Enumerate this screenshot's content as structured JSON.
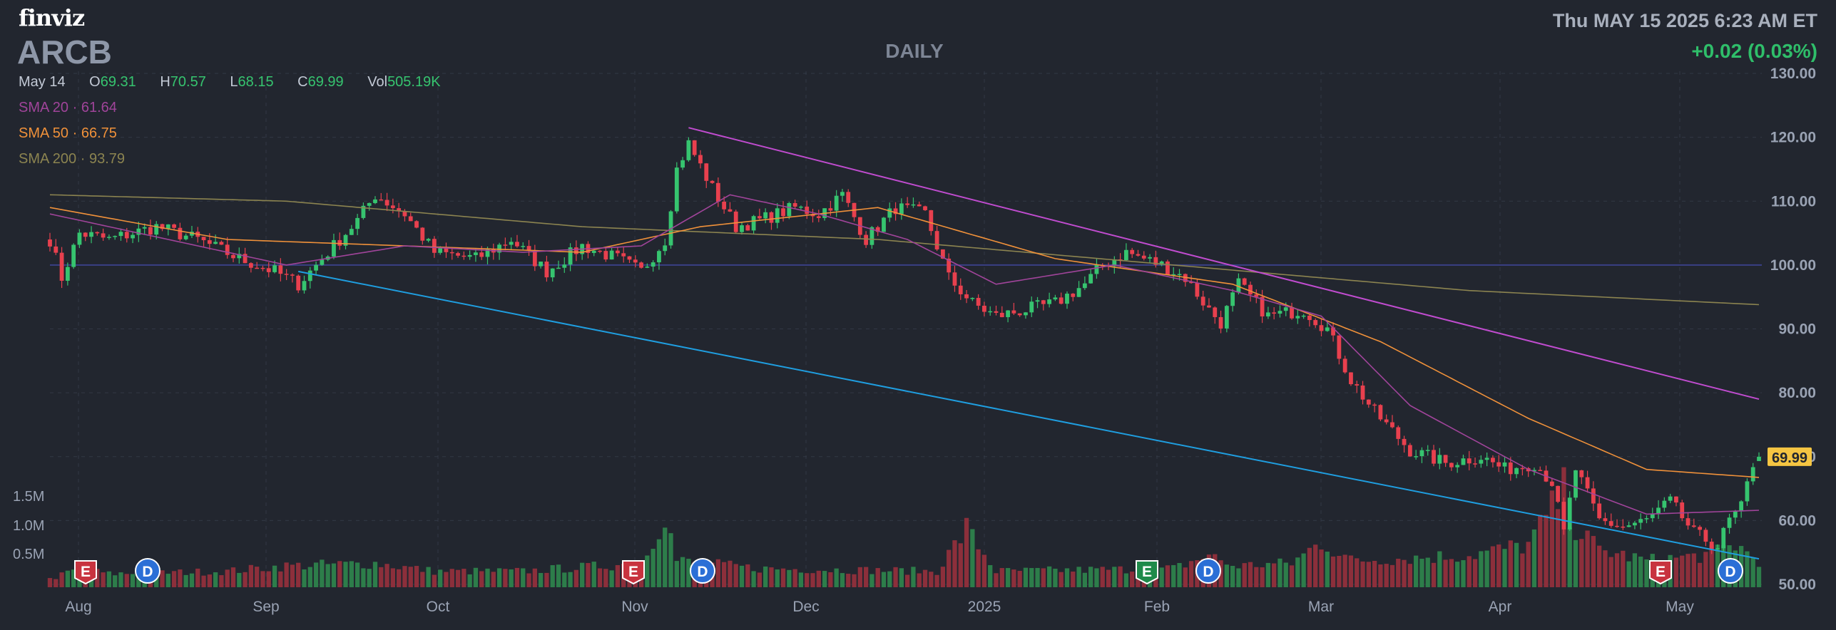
{
  "header": {
    "logo": "finviz",
    "ticker": "ARCB",
    "timeframe": "DAILY",
    "datetime": "Thu MAY 15 2025 6:23 AM ET",
    "change": "+0.02 (0.03%)"
  },
  "ohlc": {
    "date": "May 14",
    "open_label": "O",
    "open": "69.31",
    "high_label": "H",
    "high": "70.57",
    "low_label": "L",
    "low": "68.15",
    "close_label": "C",
    "close": "69.99",
    "vol_label": "Vol",
    "vol": "505.19K"
  },
  "indicators": [
    {
      "label": "SMA 20",
      "value": "61.64",
      "color": "#a0449a"
    },
    {
      "label": "SMA 50",
      "value": "66.75",
      "color": "#f0913a"
    },
    {
      "label": "SMA 200",
      "value": "93.79",
      "color": "#8c8450"
    }
  ],
  "colors": {
    "up": "#36c46f",
    "down": "#e8404e",
    "vol_up": "#2d7d4a",
    "vol_down": "#8c2f3b",
    "sma20": "#a0449a",
    "sma50": "#f0913a",
    "sma200": "#8c8450",
    "trend_upper": "#c04ccf",
    "trend_lower": "#1f9ee0",
    "price_line": "#3a3f86",
    "last_price_bg": "#f5c542"
  },
  "chart_data": {
    "type": "candlestick",
    "y_axis": {
      "ticks": [
        "130.00",
        "120.00",
        "110.00",
        "100.00",
        "90.00",
        "80.00",
        "70.00",
        "60.00",
        "50.00"
      ],
      "range": [
        50,
        130
      ],
      "side": "right"
    },
    "volume_axis": {
      "ticks": [
        "1.5M",
        "1.0M",
        "0.5M"
      ]
    },
    "x_axis": {
      "labels": [
        "Aug",
        "Sep",
        "Oct",
        "Nov",
        "Dec",
        "2025",
        "Feb",
        "Mar",
        "Apr",
        "May"
      ]
    },
    "last_price": "69.99",
    "horizontal_line": 100,
    "events": [
      {
        "type": "E",
        "month": "Aug"
      },
      {
        "type": "D",
        "month": "Aug"
      },
      {
        "type": "E",
        "month": "Nov"
      },
      {
        "type": "D",
        "month": "Nov"
      },
      {
        "type": "E",
        "month": "Feb",
        "positive": true
      },
      {
        "type": "D",
        "month": "Feb"
      },
      {
        "type": "E",
        "month": "May"
      },
      {
        "type": "D",
        "month": "May"
      }
    ],
    "price_anchors": [
      [
        0,
        104
      ],
      [
        2,
        98
      ],
      [
        5,
        105
      ],
      [
        10,
        104
      ],
      [
        18,
        106
      ],
      [
        25,
        104
      ],
      [
        32,
        101
      ],
      [
        38,
        99
      ],
      [
        42,
        97
      ],
      [
        48,
        103
      ],
      [
        52,
        107
      ],
      [
        55,
        111
      ],
      [
        60,
        108
      ],
      [
        65,
        102
      ],
      [
        72,
        101
      ],
      [
        78,
        104
      ],
      [
        84,
        99
      ],
      [
        90,
        103
      ],
      [
        96,
        101
      ],
      [
        100,
        99
      ],
      [
        104,
        104
      ],
      [
        106,
        115
      ],
      [
        108,
        119
      ],
      [
        112,
        112
      ],
      [
        116,
        106
      ],
      [
        120,
        107
      ],
      [
        126,
        109
      ],
      [
        130,
        108
      ],
      [
        134,
        111
      ],
      [
        138,
        104
      ],
      [
        143,
        109
      ],
      [
        148,
        108
      ],
      [
        152,
        98
      ],
      [
        156,
        94
      ],
      [
        160,
        92
      ],
      [
        165,
        93
      ],
      [
        170,
        94
      ],
      [
        175,
        97
      ],
      [
        178,
        100
      ],
      [
        182,
        102
      ],
      [
        188,
        100
      ],
      [
        192,
        98
      ],
      [
        196,
        93
      ],
      [
        198,
        91
      ],
      [
        201,
        97
      ],
      [
        206,
        92
      ],
      [
        212,
        93
      ],
      [
        216,
        90
      ],
      [
        220,
        82
      ],
      [
        224,
        77
      ],
      [
        230,
        71
      ],
      [
        236,
        69
      ],
      [
        242,
        70
      ],
      [
        246,
        68
      ],
      [
        251,
        69
      ],
      [
        254,
        66
      ],
      [
        256,
        58
      ],
      [
        258,
        68
      ],
      [
        262,
        60
      ],
      [
        266,
        59
      ],
      [
        270,
        60
      ],
      [
        274,
        63
      ],
      [
        278,
        58
      ],
      [
        282,
        56
      ],
      [
        284,
        60
      ],
      [
        286,
        62
      ],
      [
        288,
        69
      ],
      [
        289,
        70
      ]
    ],
    "sma20_anchors": [
      [
        0,
        108
      ],
      [
        20,
        104
      ],
      [
        40,
        100
      ],
      [
        60,
        103
      ],
      [
        80,
        102
      ],
      [
        100,
        103
      ],
      [
        115,
        111
      ],
      [
        130,
        108
      ],
      [
        145,
        104
      ],
      [
        160,
        97
      ],
      [
        180,
        100
      ],
      [
        200,
        96
      ],
      [
        215,
        92
      ],
      [
        230,
        78
      ],
      [
        250,
        68
      ],
      [
        270,
        61
      ],
      [
        289,
        61.6
      ]
    ],
    "sma50_anchors": [
      [
        0,
        109
      ],
      [
        30,
        104
      ],
      [
        60,
        103
      ],
      [
        90,
        102
      ],
      [
        110,
        106
      ],
      [
        140,
        109
      ],
      [
        170,
        101
      ],
      [
        200,
        97
      ],
      [
        225,
        88
      ],
      [
        250,
        76
      ],
      [
        270,
        68
      ],
      [
        289,
        66.75
      ]
    ],
    "sma200_anchors": [
      [
        0,
        111
      ],
      [
        40,
        110
      ],
      [
        90,
        106
      ],
      [
        140,
        104
      ],
      [
        190,
        100
      ],
      [
        240,
        96
      ],
      [
        289,
        93.79
      ]
    ],
    "trendline_upper": {
      "from": [
        108,
        121.5
      ],
      "to": [
        289,
        79
      ]
    },
    "trendline_lower": {
      "from": [
        42,
        99
      ],
      "to": [
        289,
        54
      ]
    },
    "volume_anchors": [
      [
        0,
        0.15
      ],
      [
        5,
        0.35
      ],
      [
        10,
        0.25
      ],
      [
        30,
        0.3
      ],
      [
        40,
        0.4
      ],
      [
        55,
        0.45
      ],
      [
        65,
        0.3
      ],
      [
        80,
        0.3
      ],
      [
        100,
        0.45
      ],
      [
        104,
        1.4
      ],
      [
        106,
        0.5
      ],
      [
        120,
        0.35
      ],
      [
        150,
        0.3
      ],
      [
        155,
        1.1
      ],
      [
        160,
        0.3
      ],
      [
        190,
        0.35
      ],
      [
        196,
        0.6
      ],
      [
        200,
        0.4
      ],
      [
        210,
        0.45
      ],
      [
        215,
        0.85
      ],
      [
        220,
        0.5
      ],
      [
        230,
        0.55
      ],
      [
        240,
        0.6
      ],
      [
        250,
        0.8
      ],
      [
        256,
        1.8
      ],
      [
        258,
        1.1
      ],
      [
        262,
        0.7
      ],
      [
        270,
        0.5
      ],
      [
        280,
        0.6
      ],
      [
        285,
        0.8
      ],
      [
        289,
        0.5
      ]
    ]
  }
}
